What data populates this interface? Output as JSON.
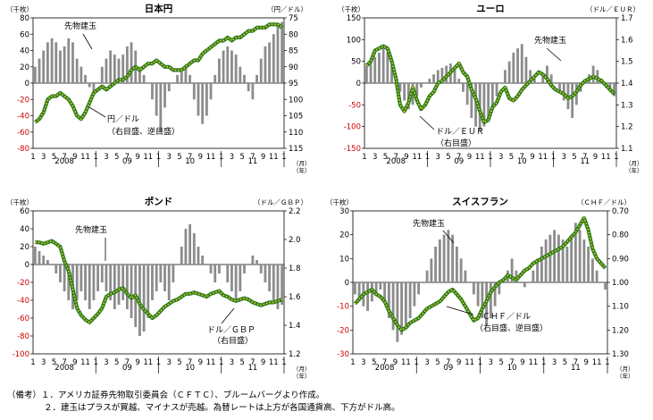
{
  "chart_data": [
    {
      "type": "bar",
      "title": "日本円",
      "left_axis_unit": "（千枚）",
      "right_axis_unit": "（円／ドル）",
      "left_ticks": [
        "80",
        "60",
        "40",
        "20",
        "0",
        "-20",
        "-40",
        "-60",
        "-80"
      ],
      "left_tick_values": [
        80,
        60,
        40,
        20,
        0,
        -20,
        -40,
        -60,
        -80
      ],
      "right_ticks": [
        "75",
        "80",
        "85",
        "90",
        "95",
        "100",
        "105",
        "110",
        "115"
      ],
      "right_tick_values": [
        75,
        80,
        85,
        90,
        95,
        100,
        105,
        110,
        115
      ],
      "left_range": [
        -80,
        80
      ],
      "right_range": [
        75,
        115
      ],
      "right_inverted": true,
      "red_negative_ticks": true,
      "month_labels": [
        "1",
        "3",
        "5",
        "7",
        "9",
        "11",
        "1",
        "3",
        "5",
        "7",
        "9",
        "11",
        "1",
        "3",
        "5",
        "7",
        "9",
        "11",
        "1",
        "3",
        "5",
        "7",
        "9",
        "11",
        "1"
      ],
      "year_labels": [
        "2008",
        "09",
        "10",
        "11"
      ],
      "unit_month": "（月）",
      "unit_year": "（年）",
      "annotations": [
        {
          "text": "先物建玉"
        },
        {
          "text": "円／ドル"
        },
        {
          "text": "（右目盛、逆目盛）"
        }
      ],
      "position_series": [
        20,
        30,
        40,
        50,
        55,
        50,
        40,
        45,
        55,
        50,
        30,
        20,
        10,
        -5,
        -10,
        0,
        20,
        30,
        40,
        35,
        30,
        35,
        45,
        50,
        40,
        20,
        10,
        0,
        -20,
        -40,
        -60,
        -30,
        -10,
        0,
        10,
        15,
        20,
        10,
        -20,
        -40,
        -50,
        -40,
        -20,
        10,
        30,
        40,
        45,
        40,
        35,
        20,
        10,
        -10,
        -20,
        10,
        30,
        45,
        50,
        60,
        70,
        75
      ],
      "rate_series": [
        107,
        106,
        104,
        100,
        99,
        99,
        98,
        99,
        100,
        102,
        105,
        106,
        104,
        101,
        98,
        97,
        96,
        97,
        96,
        95,
        94,
        94,
        93,
        91,
        90,
        91,
        90,
        89,
        89,
        88,
        89,
        90,
        90,
        91,
        91,
        91,
        90,
        89,
        88,
        88,
        86,
        85,
        84,
        83,
        82,
        82,
        81,
        82,
        81,
        81,
        80,
        79,
        79,
        78,
        78,
        78,
        77,
        77,
        77,
        78
      ]
    },
    {
      "type": "bar",
      "title": "ユーロ",
      "left_axis_unit": "（千枚）",
      "right_axis_unit": "（ドル／ＥＵＲ）",
      "left_ticks": [
        "150",
        "100",
        "50",
        "0",
        "-50",
        "-100",
        "-150"
      ],
      "left_tick_values": [
        150,
        100,
        50,
        0,
        -50,
        -100,
        -150
      ],
      "right_ticks": [
        "1.7",
        "1.6",
        "1.5",
        "1.4",
        "1.3",
        "1.2",
        "1.1"
      ],
      "right_tick_values": [
        1.7,
        1.6,
        1.5,
        1.4,
        1.3,
        1.2,
        1.1
      ],
      "left_range": [
        -150,
        150
      ],
      "right_range": [
        1.1,
        1.7
      ],
      "right_inverted": false,
      "red_negative_ticks": true,
      "month_labels": [
        "1",
        "3",
        "5",
        "7",
        "9",
        "11",
        "1",
        "3",
        "5",
        "7",
        "9",
        "11",
        "1",
        "3",
        "5",
        "7",
        "9",
        "11",
        "1",
        "3",
        "5",
        "7",
        "9",
        "11",
        "1"
      ],
      "year_labels": [
        "2008",
        "09",
        "10",
        "11"
      ],
      "unit_month": "（月）",
      "unit_year": "（年）",
      "annotations": [
        {
          "text": "先物建玉"
        },
        {
          "text": "ドル／ＥＵＲ"
        },
        {
          "text": "（右目盛）"
        }
      ],
      "position_series": [
        40,
        50,
        60,
        70,
        80,
        70,
        40,
        10,
        -20,
        -40,
        -60,
        -50,
        -30,
        -10,
        0,
        10,
        20,
        30,
        35,
        40,
        45,
        30,
        10,
        -20,
        -50,
        -80,
        -100,
        -110,
        -100,
        -80,
        -60,
        -30,
        0,
        30,
        50,
        70,
        80,
        90,
        60,
        30,
        10,
        0,
        20,
        40,
        20,
        0,
        -20,
        -40,
        -60,
        -80,
        -50,
        -20,
        0,
        20,
        40,
        30,
        10,
        -10,
        -20,
        -30
      ],
      "rate_series": [
        1.48,
        1.5,
        1.55,
        1.56,
        1.57,
        1.56,
        1.5,
        1.42,
        1.3,
        1.27,
        1.31,
        1.38,
        1.32,
        1.28,
        1.3,
        1.34,
        1.36,
        1.4,
        1.41,
        1.43,
        1.45,
        1.47,
        1.49,
        1.45,
        1.43,
        1.37,
        1.33,
        1.27,
        1.22,
        1.23,
        1.29,
        1.31,
        1.36,
        1.38,
        1.33,
        1.32,
        1.34,
        1.37,
        1.39,
        1.41,
        1.43,
        1.45,
        1.44,
        1.42,
        1.39,
        1.37,
        1.36,
        1.35,
        1.33,
        1.34,
        1.36,
        1.39,
        1.41,
        1.42,
        1.43,
        1.42,
        1.41,
        1.39,
        1.37,
        1.35
      ]
    },
    {
      "type": "bar",
      "title": "ポンド",
      "left_axis_unit": "（千枚）",
      "right_axis_unit": "（ドル／ＧＢＰ）",
      "left_ticks": [
        "60",
        "40",
        "20",
        "0",
        "-20",
        "-40",
        "-60",
        "-80",
        "-100"
      ],
      "left_tick_values": [
        60,
        40,
        20,
        0,
        -20,
        -40,
        -60,
        -80,
        -100
      ],
      "right_ticks": [
        "2.2",
        "2.0",
        "1.8",
        "1.6",
        "1.4",
        "1.2"
      ],
      "right_tick_values": [
        2.2,
        2.0,
        1.8,
        1.6,
        1.4,
        1.2
      ],
      "left_range": [
        -100,
        60
      ],
      "right_range": [
        1.2,
        2.2
      ],
      "right_inverted": false,
      "red_negative_ticks": true,
      "month_labels": [
        "1",
        "3",
        "5",
        "7",
        "9",
        "11",
        "1",
        "3",
        "5",
        "7",
        "9",
        "11",
        "1",
        "3",
        "5",
        "7",
        "9",
        "11",
        "1",
        "3",
        "5",
        "7",
        "9",
        "11",
        "1"
      ],
      "year_labels": [
        "2008",
        "09",
        "10",
        "11"
      ],
      "unit_month": "（月）",
      "unit_year": "（年）",
      "annotations": [
        {
          "text": "先物建玉"
        },
        {
          "text": "ドル／ＧＢＰ"
        },
        {
          "text": "（右目盛）"
        }
      ],
      "position_series": [
        20,
        15,
        10,
        5,
        0,
        -10,
        -20,
        -30,
        -40,
        -50,
        -40,
        -30,
        -40,
        -50,
        -40,
        -30,
        -20,
        -30,
        -40,
        -50,
        -45,
        -40,
        -50,
        -60,
        -70,
        -80,
        -75,
        -60,
        -40,
        -30,
        -20,
        -30,
        -40,
        -20,
        0,
        20,
        40,
        45,
        35,
        20,
        10,
        0,
        -10,
        -20,
        -10,
        0,
        -20,
        -30,
        -40,
        -30,
        -10,
        0,
        10,
        5,
        -10,
        -20,
        -30,
        -40,
        -50,
        -45
      ],
      "rate_series": [
        1.98,
        1.98,
        1.97,
        1.98,
        1.99,
        1.97,
        1.95,
        1.85,
        1.78,
        1.65,
        1.52,
        1.47,
        1.44,
        1.42,
        1.45,
        1.48,
        1.52,
        1.6,
        1.62,
        1.63,
        1.65,
        1.66,
        1.62,
        1.59,
        1.61,
        1.55,
        1.51,
        1.48,
        1.45,
        1.47,
        1.5,
        1.53,
        1.55,
        1.57,
        1.58,
        1.6,
        1.62,
        1.62,
        1.63,
        1.62,
        1.61,
        1.6,
        1.62,
        1.63,
        1.64,
        1.61,
        1.6,
        1.58,
        1.57,
        1.58,
        1.59,
        1.58,
        1.56,
        1.55,
        1.54,
        1.55,
        1.56,
        1.56,
        1.57,
        1.58
      ]
    },
    {
      "type": "bar",
      "title": "スイスフラン",
      "left_axis_unit": "（千枚）",
      "right_axis_unit": "（ＣＨＦ／ドル）",
      "left_ticks": [
        "30",
        "20",
        "10",
        "0",
        "-10",
        "-20",
        "-30"
      ],
      "left_tick_values": [
        30,
        20,
        10,
        0,
        -10,
        -20,
        -30
      ],
      "right_ticks": [
        "0.70",
        "0.80",
        "0.90",
        "1.00",
        "1.10",
        "1.20",
        "1.30"
      ],
      "right_tick_values": [
        0.7,
        0.8,
        0.9,
        1.0,
        1.1,
        1.2,
        1.3
      ],
      "left_range": [
        -30,
        30
      ],
      "right_range": [
        0.7,
        1.3
      ],
      "right_inverted": true,
      "red_negative_ticks": true,
      "month_labels": [
        "1",
        "3",
        "5",
        "7",
        "9",
        "11",
        "1",
        "3",
        "5",
        "7",
        "9",
        "11",
        "1",
        "3",
        "5",
        "7",
        "9",
        "11",
        "1",
        "3",
        "5",
        "7",
        "9",
        "11",
        "1"
      ],
      "year_labels": [
        "2008",
        "09",
        "10",
        "11"
      ],
      "unit_month": "（月）",
      "unit_year": "（年）",
      "annotations": [
        {
          "text": "先物建玉"
        },
        {
          "text": "ＣＨＦ／ドル"
        },
        {
          "text": "（右目盛、逆目盛）"
        }
      ],
      "position_series": [
        -5,
        -8,
        -10,
        -12,
        -8,
        -5,
        -3,
        -8,
        -15,
        -20,
        -25,
        -22,
        -18,
        -15,
        -10,
        -5,
        0,
        5,
        10,
        15,
        18,
        20,
        22,
        20,
        15,
        10,
        5,
        0,
        -5,
        -10,
        -15,
        -18,
        -15,
        -10,
        -5,
        0,
        5,
        10,
        5,
        0,
        -2,
        0,
        5,
        10,
        15,
        18,
        20,
        22,
        20,
        18,
        15,
        20,
        25,
        22,
        18,
        15,
        10,
        5,
        0,
        -3
      ],
      "rate_series": [
        1.09,
        1.07,
        1.05,
        1.04,
        1.03,
        1.05,
        1.06,
        1.08,
        1.12,
        1.15,
        1.18,
        1.2,
        1.19,
        1.17,
        1.16,
        1.15,
        1.13,
        1.11,
        1.1,
        1.09,
        1.08,
        1.06,
        1.04,
        1.03,
        1.05,
        1.07,
        1.1,
        1.13,
        1.16,
        1.15,
        1.11,
        1.08,
        1.04,
        1.02,
        1.0,
        0.99,
        0.97,
        0.98,
        0.99,
        0.97,
        0.95,
        0.94,
        0.92,
        0.91,
        0.9,
        0.89,
        0.88,
        0.87,
        0.86,
        0.85,
        0.83,
        0.81,
        0.79,
        0.76,
        0.73,
        0.78,
        0.86,
        0.9,
        0.92,
        0.94
      ]
    }
  ],
  "notes": {
    "line1": "（備考）１．アメリカ証券先物取引委員会（ＣＦＴＣ）、ブルームバーグより作成。",
    "line2": "２．建玉はプラスが買越、マイナスが売越。為替レートは上方が各国通貨高、下方がドル高。"
  }
}
